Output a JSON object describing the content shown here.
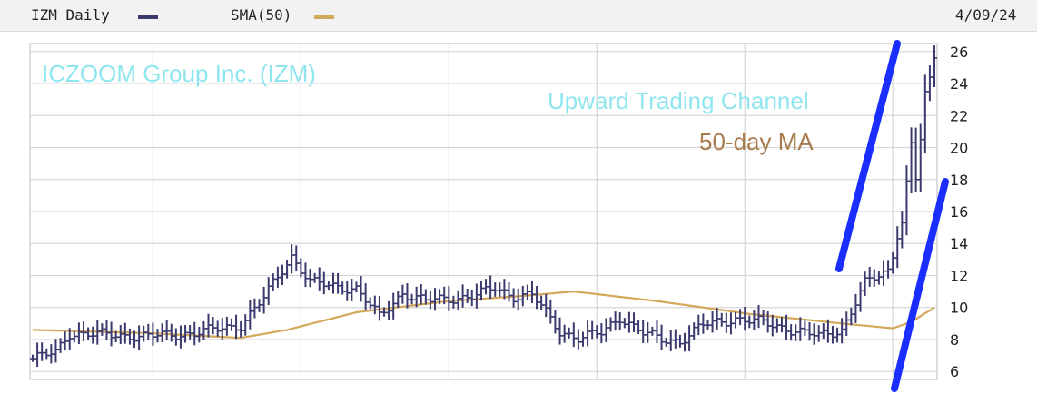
{
  "header": {
    "symbol_label": "IZM Daily",
    "sma_label": "SMA(50)",
    "date": "4/09/24",
    "price_color": "#3a3a6e",
    "sma_color": "#d4a85a"
  },
  "annotations": {
    "company": "ICZOOM Group Inc. (IZM)",
    "channel": "Upward Trading Channel",
    "ma": "50-day MA",
    "company_color": "#8fe6ee",
    "channel_color": "#8fe6ee",
    "ma_color": "#a87c4e",
    "channel_line_color": "#1a2fff"
  },
  "chart_data": {
    "type": "line",
    "title": "IZM Daily",
    "ylim": [
      5.5,
      26.5
    ],
    "yticks": [
      6,
      8,
      10,
      12,
      14,
      16,
      18,
      20,
      22,
      24,
      26
    ],
    "grid": true,
    "n_bars": 196,
    "vertical_grid_at_bar": [
      26,
      58,
      90,
      122,
      154,
      186
    ],
    "series": [
      {
        "name": "IZM Daily",
        "kind": "ohlc",
        "anchors_bar": [
          0,
          5,
          8,
          15,
          25,
          35,
          45,
          50,
          52,
          56,
          60,
          65,
          70,
          75,
          80,
          85,
          95,
          100,
          104,
          108,
          114,
          118,
          123,
          127,
          132,
          136,
          140,
          145,
          152,
          157,
          163,
          170,
          175,
          180,
          185,
          188,
          189,
          190,
          191,
          192,
          193,
          194,
          195
        ],
        "anchors_close": [
          6.8,
          7.2,
          8.4,
          8.3,
          8.2,
          8.4,
          8.9,
          10.6,
          11.5,
          13.2,
          11.6,
          11.3,
          11.2,
          9.4,
          10.9,
          10.4,
          10.7,
          11.2,
          10.7,
          10.8,
          8.5,
          8.1,
          8.4,
          9.4,
          8.4,
          8.0,
          7.9,
          8.9,
          9.3,
          9.1,
          8.7,
          8.2,
          8.6,
          11.5,
          12.3,
          15.3,
          17.9,
          20.3,
          18.0,
          20.5,
          23.5,
          24.4,
          25.6
        ]
      },
      {
        "name": "SMA(50)",
        "kind": "line",
        "anchors_bar": [
          0,
          25,
          45,
          55,
          70,
          90,
          105,
          117,
          135,
          155,
          175,
          186,
          190,
          195
        ],
        "anchors_value": [
          8.6,
          8.4,
          8.1,
          8.6,
          9.7,
          10.4,
          10.7,
          11.0,
          10.4,
          9.6,
          9.0,
          8.7,
          9.1,
          10.0
        ]
      }
    ]
  }
}
